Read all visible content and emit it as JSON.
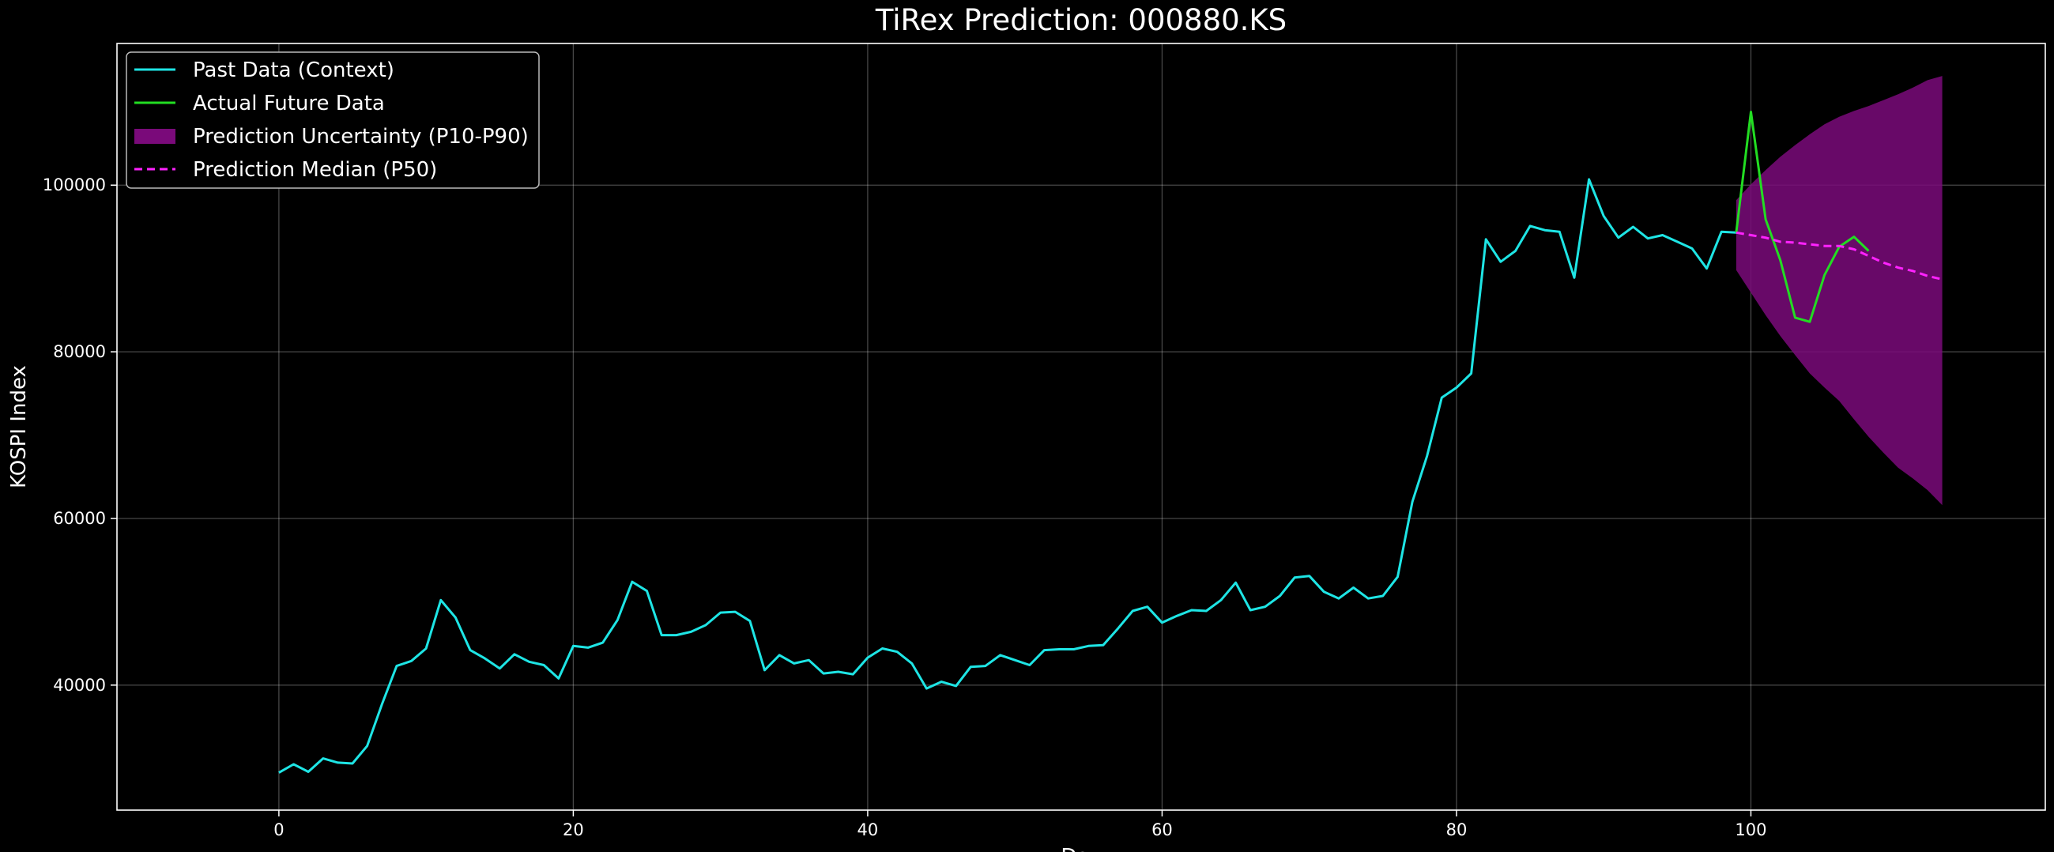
{
  "chart_data": {
    "type": "line",
    "title": "TiRex Prediction: 000880.KS",
    "xlabel": "Day",
    "ylabel": "KOSPI Index",
    "xlim": [
      -11,
      120
    ],
    "ylim": [
      25000,
      117000
    ],
    "xticks": [
      0,
      20,
      40,
      60,
      80,
      100
    ],
    "yticks": [
      40000,
      60000,
      80000,
      100000
    ],
    "grid": true,
    "legend_position": "upper-left",
    "colors": {
      "background": "#000000",
      "context": "#1ee5e5",
      "actual": "#22dd22",
      "band": "#7a0a7a",
      "median": "#ff22ff"
    },
    "legend": [
      {
        "key": "context",
        "label": "Past Data (Context)"
      },
      {
        "key": "actual",
        "label": "Actual Future Data"
      },
      {
        "key": "band",
        "label": "Prediction Uncertainty (P10-P90)"
      },
      {
        "key": "median",
        "label": "Prediction Median (P50)"
      }
    ],
    "series": [
      {
        "name": "Past Data (Context)",
        "x_start": 0,
        "values": [
          29500,
          30500,
          29600,
          31200,
          30700,
          30600,
          32700,
          37700,
          42300,
          42900,
          44400,
          50200,
          48100,
          44200,
          43200,
          42000,
          43700,
          42800,
          42400,
          40800,
          44700,
          44500,
          45100,
          47800,
          52400,
          51300,
          46000,
          46000,
          46400,
          47200,
          48700,
          48800,
          47700,
          41800,
          43600,
          42600,
          43000,
          41400,
          41600,
          41300,
          43300,
          44400,
          44000,
          42600,
          39600,
          40400,
          39900,
          42200,
          42300,
          43600,
          43000,
          42400,
          44200,
          44300,
          44300,
          44700,
          44800,
          46800,
          48900,
          49400,
          47500,
          48300,
          49000,
          48900,
          50200,
          52300,
          49000,
          49400,
          50700,
          52900,
          53100,
          51200,
          50400,
          51700,
          50400,
          50700,
          53000,
          62000,
          67500,
          74500,
          75700,
          77400,
          93500,
          90800,
          92100,
          95100,
          94600,
          94400,
          88900,
          100700,
          96300,
          93700,
          95000,
          93600,
          94000,
          93200,
          92400,
          90000,
          94400,
          94300
        ]
      },
      {
        "name": "Actual Future Data",
        "x_start": 99,
        "values": [
          94300,
          108800,
          95900,
          91000,
          84100,
          83600,
          89200,
          92600,
          93800,
          92100
        ]
      },
      {
        "name": "Prediction Median (P50)",
        "x_start": 99,
        "values": [
          94300,
          94000,
          93700,
          93200,
          93100,
          92900,
          92700,
          92700,
          92300,
          91500,
          90700,
          90100,
          89700,
          89100,
          88700
        ]
      },
      {
        "name": "Prediction Uncertainty (P10-P90)",
        "x_start": 99,
        "lower": [
          89800,
          87100,
          84400,
          81900,
          79600,
          77400,
          75700,
          74100,
          71900,
          69800,
          67900,
          66100,
          64800,
          63400,
          61600
        ],
        "upper": [
          98200,
          100100,
          101800,
          103400,
          104800,
          106100,
          107300,
          108200,
          108900,
          109500,
          110200,
          110900,
          111700,
          112600,
          113100
        ]
      }
    ]
  }
}
